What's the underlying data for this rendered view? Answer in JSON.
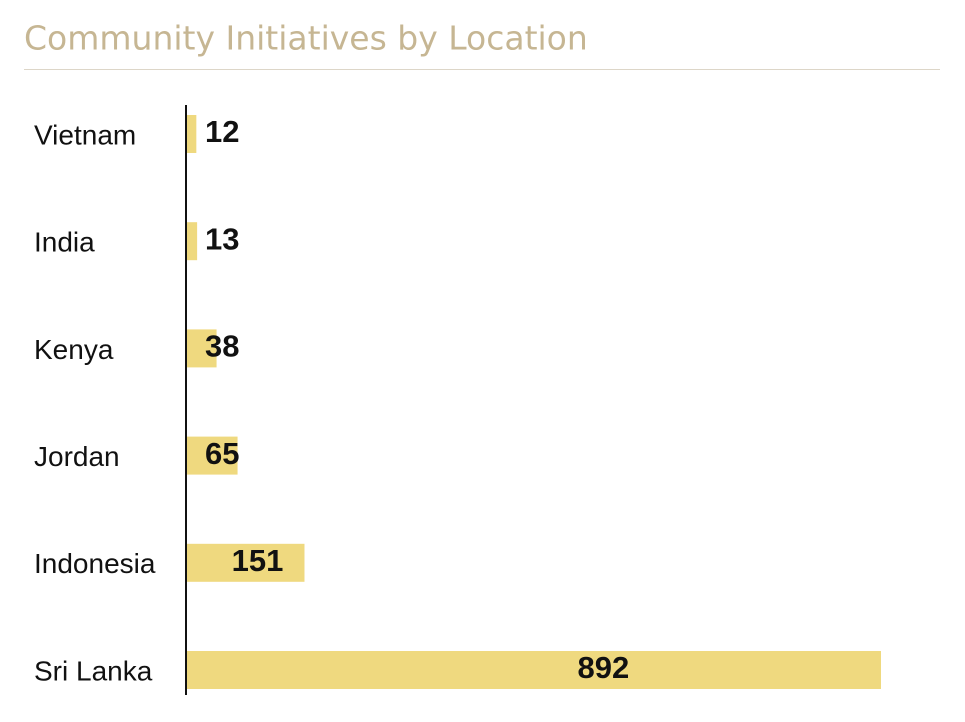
{
  "chart_data": {
    "type": "bar",
    "orientation": "horizontal",
    "title": "Community Initiatives by Location",
    "categories": [
      "Vietnam",
      "India",
      "Kenya",
      "Jordan",
      "Indonesia",
      "Sri Lanka"
    ],
    "values": [
      12,
      13,
      38,
      65,
      151,
      892
    ],
    "color": "#efd97f"
  }
}
